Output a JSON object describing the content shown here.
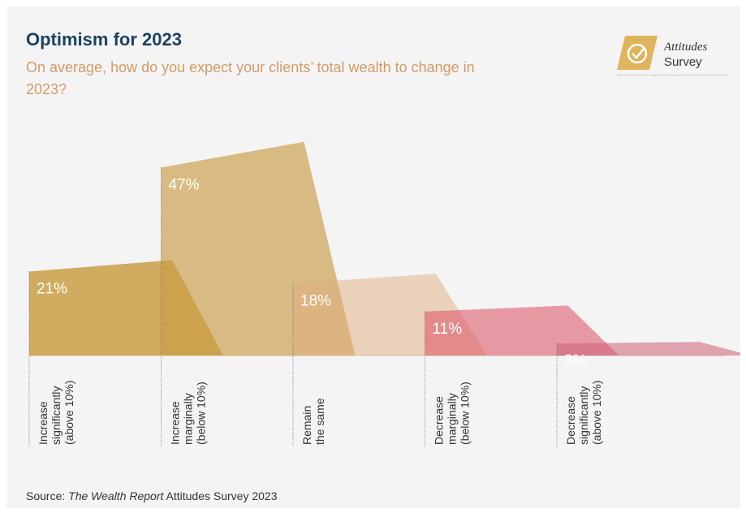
{
  "header": {
    "title": "Optimism for 2023",
    "subtitle": "On average, how do you expect your clients’ total wealth to change in 2023?"
  },
  "logo": {
    "line1": "Attitudes",
    "line2": "Survey",
    "icon": "check-circle-icon",
    "color": "#e0b45c"
  },
  "chart_data": {
    "type": "area",
    "title": "Optimism for 2023",
    "subtitle": "On average, how do you expect your clients’ total wealth to change in 2023?",
    "categories": [
      [
        "Increase",
        "significantly",
        "(above 10%)"
      ],
      [
        "Increase",
        "marginally",
        "(below 10%)"
      ],
      [
        "Remain",
        "the same"
      ],
      [
        "Decrease",
        "marginally",
        "(below 10%)"
      ],
      [
        "Decrease",
        "significantly",
        "(above 10%)"
      ]
    ],
    "values": [
      21,
      47,
      18,
      11,
      3
    ],
    "value_labels": [
      "21%",
      "47%",
      "18%",
      "11%",
      "3%"
    ],
    "colors": [
      "#c99d45",
      "#c99d45",
      "#dfae80",
      "#dd5c6c",
      "#cc6076"
    ],
    "opacities": [
      0.85,
      0.65,
      0.5,
      0.6,
      0.55
    ],
    "ylim": [
      0,
      50
    ],
    "grid": false
  },
  "footer": {
    "source_prefix": "Source: ",
    "source_italic": "The Wealth Report",
    "source_suffix": " Attitudes Survey 2023"
  }
}
